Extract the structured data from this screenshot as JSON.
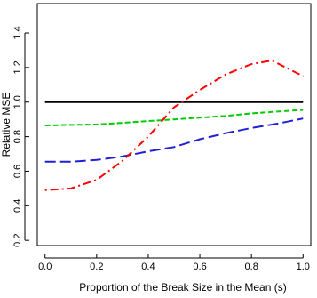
{
  "chart_data": {
    "type": "line",
    "title": "",
    "xlabel": "Proportion of the Break Size in the Mean (s)",
    "ylabel": "Relative MSE",
    "xlim": [
      -0.03,
      1.03
    ],
    "ylim": [
      0.17,
      1.57
    ],
    "x_ticks": [
      0.0,
      0.2,
      0.4,
      0.6,
      0.8,
      1.0
    ],
    "x_tick_labels": [
      "0.0",
      "0.2",
      "0.4",
      "0.6",
      "0.8",
      "1.0"
    ],
    "y_ticks": [
      0.2,
      0.4,
      0.6,
      0.8,
      1.0,
      1.2,
      1.4
    ],
    "y_tick_labels": [
      "0.2",
      "0.4",
      "0.6",
      "0.8",
      "1.0",
      "1.2",
      "1.4"
    ],
    "grid": false,
    "legend": "none",
    "series": [
      {
        "color": "#000000",
        "dash": "solid",
        "x": [
          0.0,
          1.0
        ],
        "y": [
          1.0,
          1.0
        ]
      },
      {
        "color": "#00cc00",
        "dash": "dashed",
        "x": [
          0.0,
          0.1,
          0.2,
          0.3,
          0.4,
          0.5,
          0.6,
          0.7,
          0.8,
          0.9,
          1.0
        ],
        "y": [
          0.865,
          0.868,
          0.87,
          0.88,
          0.89,
          0.9,
          0.91,
          0.92,
          0.935,
          0.945,
          0.955
        ]
      },
      {
        "color": "#1f1fd6",
        "dash": "longdash",
        "x": [
          0.0,
          0.1,
          0.2,
          0.3,
          0.4,
          0.5,
          0.6,
          0.7,
          0.8,
          0.9,
          1.0
        ],
        "y": [
          0.655,
          0.655,
          0.665,
          0.685,
          0.715,
          0.74,
          0.785,
          0.82,
          0.85,
          0.875,
          0.905
        ]
      },
      {
        "color": "#ff0000",
        "dash": "dotdash",
        "x": [
          0.0,
          0.1,
          0.2,
          0.3,
          0.4,
          0.5,
          0.6,
          0.7,
          0.8,
          0.88,
          1.0
        ],
        "y": [
          0.49,
          0.5,
          0.55,
          0.66,
          0.8,
          0.97,
          1.07,
          1.16,
          1.22,
          1.24,
          1.15
        ]
      }
    ]
  }
}
